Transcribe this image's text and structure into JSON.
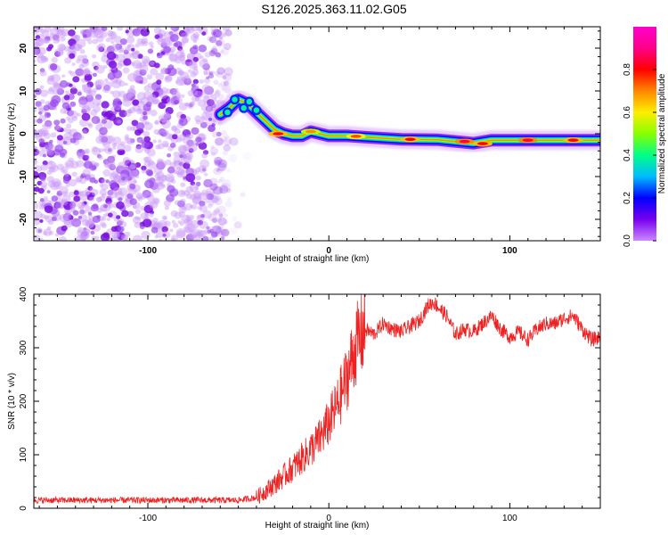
{
  "title": "S126.2025.363.11.02.G05",
  "chart_data": [
    {
      "type": "heatmap",
      "xlabel": "Height of straight line (km)",
      "ylabel": "Frequency (Hz)",
      "xlim": [
        -163,
        150
      ],
      "ylim": [
        -25,
        25
      ],
      "xticks": [
        -100,
        0,
        100
      ],
      "xtick_labels": [
        "-100",
        "0",
        "100"
      ],
      "yticks": [
        20,
        10,
        0,
        -10,
        -20
      ],
      "ytick_labels": [
        "20",
        "10",
        "0",
        "-10",
        "-20"
      ],
      "colorbar": {
        "label": "Normalized spectral amplitude",
        "range": [
          0,
          1
        ],
        "ticks": [
          0.0,
          0.2,
          0.4,
          0.6,
          0.8
        ],
        "tick_labels": [
          "0.0",
          "0.2",
          "0.4",
          "0.6",
          "0.8"
        ],
        "colormap": [
          "#cc88ff",
          "#7700ee",
          "#0000ff",
          "#00bbff",
          "#00ff88",
          "#88ff00",
          "#ffee00",
          "#ff8800",
          "#ff0000",
          "#ff0088",
          "#ff00cc"
        ]
      },
      "noise_region_km": [
        -163,
        -55
      ],
      "ridge": [
        {
          "x": -60,
          "y": 4.5
        },
        {
          "x": -55,
          "y": 6
        },
        {
          "x": -50,
          "y": 8
        },
        {
          "x": -45,
          "y": 7
        },
        {
          "x": -40,
          "y": 5
        },
        {
          "x": -35,
          "y": 3
        },
        {
          "x": -30,
          "y": 1
        },
        {
          "x": -25,
          "y": 0
        },
        {
          "x": -20,
          "y": -0.5
        },
        {
          "x": -15,
          "y": -0.5
        },
        {
          "x": -10,
          "y": 0.5
        },
        {
          "x": -5,
          "y": 0
        },
        {
          "x": 0,
          "y": -0.5
        },
        {
          "x": 10,
          "y": -0.5
        },
        {
          "x": 20,
          "y": -0.8
        },
        {
          "x": 40,
          "y": -1.3
        },
        {
          "x": 60,
          "y": -1.4
        },
        {
          "x": 80,
          "y": -2.2
        },
        {
          "x": 90,
          "y": -1.5
        },
        {
          "x": 100,
          "y": -1.5
        },
        {
          "x": 120,
          "y": -1.5
        },
        {
          "x": 150,
          "y": -1.5
        }
      ],
      "hot_spots": [
        {
          "x": -28,
          "y": 0,
          "v": 0.8
        },
        {
          "x": -10,
          "y": 0.5,
          "v": 0.7
        },
        {
          "x": 15,
          "y": -0.6,
          "v": 0.75
        },
        {
          "x": 45,
          "y": -1.3,
          "v": 0.8
        },
        {
          "x": 75,
          "y": -1.8,
          "v": 0.85
        },
        {
          "x": 85,
          "y": -2.3,
          "v": 0.8
        },
        {
          "x": 110,
          "y": -1.5,
          "v": 0.85
        },
        {
          "x": 135,
          "y": -1.5,
          "v": 0.8
        }
      ]
    },
    {
      "type": "line",
      "xlabel": "Height of straight line (km)",
      "ylabel": "SNR (10 * v/v)",
      "xlim": [
        -163,
        150
      ],
      "ylim": [
        0,
        400
      ],
      "xticks": [
        -100,
        0,
        100
      ],
      "xtick_labels": [
        "-100",
        "0",
        "100"
      ],
      "yticks": [
        0,
        100,
        200,
        300,
        400
      ],
      "ytick_labels": [
        "0",
        "100",
        "200",
        "300",
        "400"
      ],
      "line_color": "#ee2222",
      "series": [
        {
          "name": "SNR",
          "x": [
            -163,
            -140,
            -120,
            -100,
            -80,
            -60,
            -50,
            -40,
            -30,
            -20,
            -10,
            -5,
            0,
            5,
            10,
            15,
            20,
            25,
            30,
            35,
            40,
            45,
            50,
            55,
            58,
            62,
            65,
            70,
            75,
            80,
            85,
            90,
            95,
            100,
            105,
            110,
            115,
            120,
            125,
            130,
            135,
            140,
            145,
            150
          ],
          "y": [
            15,
            15,
            15,
            15,
            15,
            15,
            15,
            20,
            45,
            75,
            110,
            130,
            160,
            195,
            245,
            305,
            335,
            325,
            345,
            335,
            330,
            340,
            350,
            380,
            385,
            370,
            360,
            325,
            335,
            330,
            345,
            360,
            335,
            320,
            330,
            315,
            335,
            345,
            345,
            355,
            360,
            335,
            315,
            320
          ]
        }
      ]
    }
  ]
}
